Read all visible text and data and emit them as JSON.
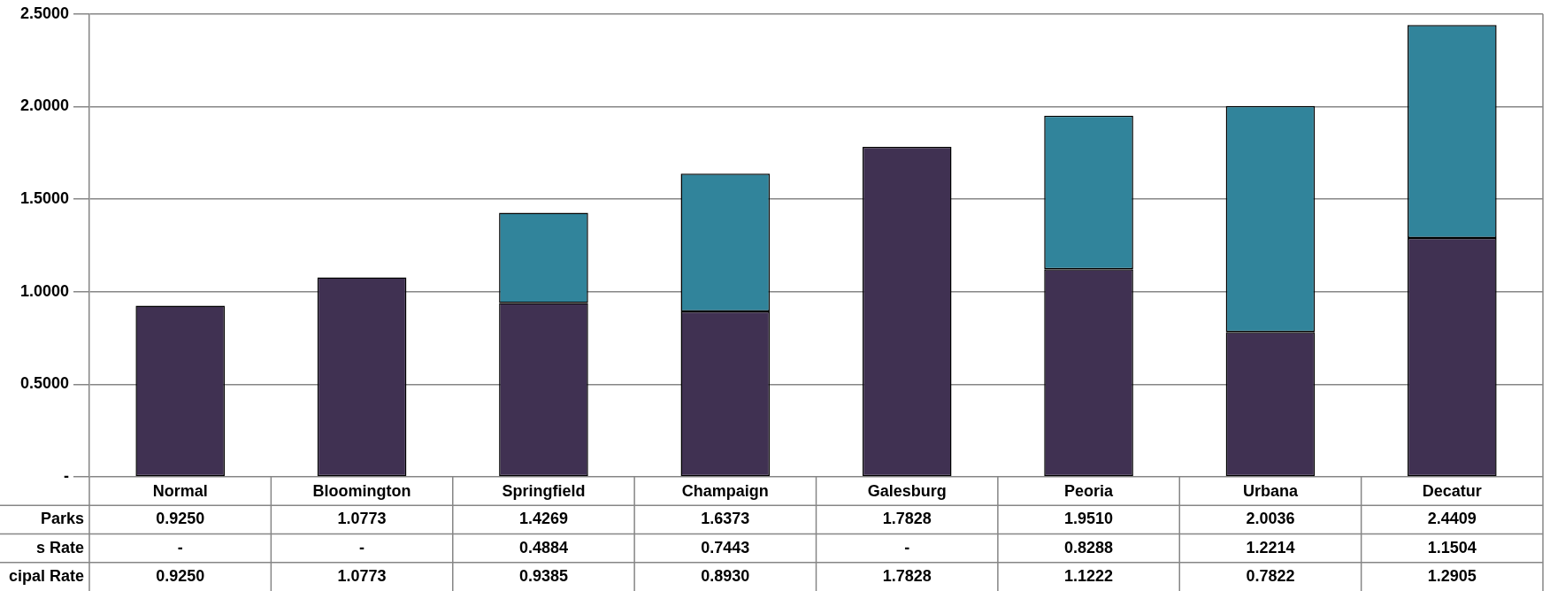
{
  "chart_data": {
    "type": "bar",
    "stacked": true,
    "categories": [
      "Normal",
      "Bloomington",
      "Springfield",
      "Champaign",
      "Galesburg",
      "Peoria",
      "Urbana",
      "Decatur"
    ],
    "series": [
      {
        "color": "#403152",
        "values": [
          0.925,
          1.0773,
          0.9385,
          0.893,
          1.7828,
          1.1222,
          0.7822,
          1.2905
        ],
        "value_labels": [
          "0.9250",
          "1.0773",
          "0.9385",
          "0.8930",
          "1.7828",
          "1.1222",
          "0.7822",
          "1.2905"
        ]
      },
      {
        "color": "#31849b",
        "values": [
          null,
          null,
          0.4884,
          0.7443,
          null,
          0.8288,
          1.2214,
          1.1504
        ],
        "value_labels": [
          "-",
          "-",
          "0.4884",
          "0.7443",
          "-",
          "0.8288",
          "1.2214",
          "1.1504"
        ]
      }
    ],
    "totals": [
      "0.9250",
      "1.0773",
      "1.4269",
      "1.6373",
      "1.7828",
      "1.9510",
      "2.0036",
      "2.4409"
    ],
    "annotations": [
      "Parks",
      "s Rate",
      "cipal Rate"
    ],
    "ylim": [
      0,
      2.5
    ],
    "yticks": [
      {
        "value": 0,
        "label": "-"
      },
      {
        "value": 0.5,
        "label": "0.5000"
      },
      {
        "value": 1,
        "label": "1.0000"
      },
      {
        "value": 1.5,
        "label": "1.5000"
      },
      {
        "value": 2,
        "label": "2.0000"
      },
      {
        "value": 2.5,
        "label": "2.5000"
      }
    ],
    "grid": "y",
    "legend": false
  }
}
